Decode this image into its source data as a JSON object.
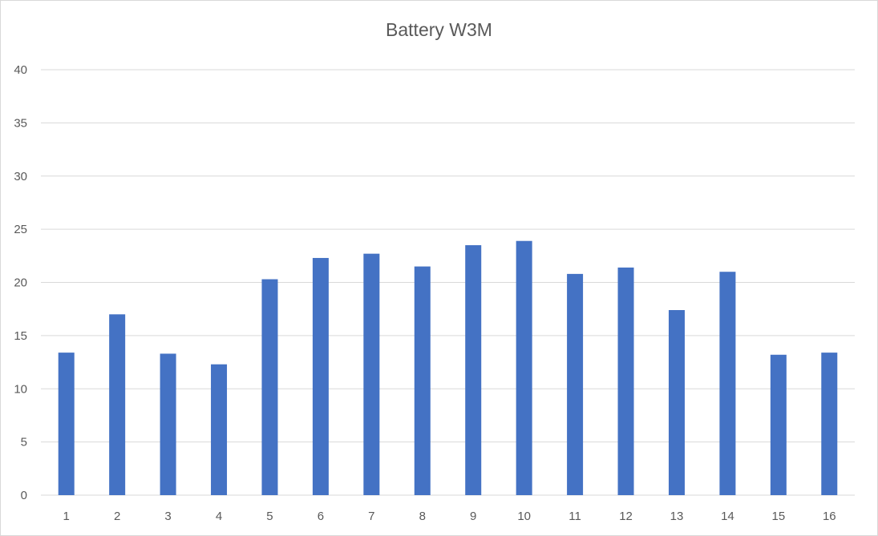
{
  "chart_data": {
    "type": "bar",
    "title": "Battery W3M",
    "xlabel": "",
    "ylabel": "",
    "categories": [
      "1",
      "2",
      "3",
      "4",
      "5",
      "6",
      "7",
      "8",
      "9",
      "10",
      "11",
      "12",
      "13",
      "14",
      "15",
      "16"
    ],
    "values": [
      13.4,
      17.0,
      13.3,
      12.3,
      20.3,
      22.3,
      22.7,
      21.5,
      23.5,
      23.9,
      20.8,
      21.4,
      17.4,
      21.0,
      13.2,
      13.4
    ],
    "ylim": [
      0,
      40
    ],
    "yticks": [
      0,
      5,
      10,
      15,
      20,
      25,
      30,
      35,
      40
    ],
    "grid": true,
    "legend": "none",
    "bar_color": "#4472c4",
    "grid_color": "#d9d9d9",
    "text_color": "#595959"
  }
}
